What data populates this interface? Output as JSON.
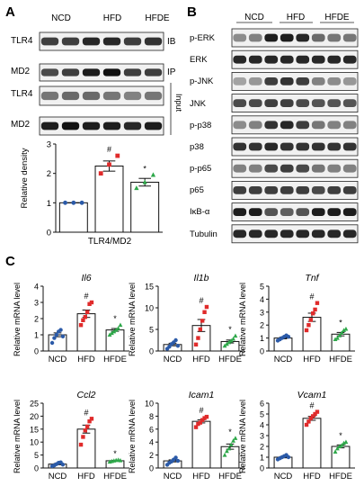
{
  "panel_a": {
    "letter": "A",
    "groups": [
      "NCD",
      "HFD",
      "HFDE"
    ],
    "blots": [
      "TLR4",
      "MD2",
      "TLR4",
      "MD2"
    ],
    "ib_label": "IB",
    "ip_label": "IP",
    "input_label": "Input",
    "xlabel": "TLR4/MD2",
    "ylabel": "Relative density",
    "markers": [
      "#",
      "*"
    ]
  },
  "panel_b": {
    "letter": "B",
    "groups": [
      "NCD",
      "HFD",
      "HFDE"
    ],
    "blots": [
      "p-ERK",
      "ERK",
      "p-JNK",
      "JNK",
      "p-p38",
      "p38",
      "p-p65",
      "p65",
      "IκB-α",
      "Tubulin"
    ]
  },
  "panel_c": {
    "letter": "C",
    "ylabel": "Relative mRNA level",
    "markers": [
      "#",
      "*"
    ]
  },
  "colors": {
    "ncd": "#2b5aa8",
    "hfd": "#e02b2b",
    "hfde": "#2ea84a"
  },
  "chart_data": [
    {
      "type": "bar",
      "categories": [
        "TLR4/MD2"
      ],
      "ylabel": "Relative density",
      "ylim": [
        0,
        3
      ],
      "yticks": [
        "0",
        "1",
        "2",
        "3"
      ],
      "series": [
        {
          "values": [
            1.0
          ],
          "points": [
            1.0,
            1.0,
            1.0
          ]
        },
        {
          "values": [
            2.25
          ],
          "points": [
            2.0,
            2.3,
            2.6
          ]
        },
        {
          "values": [
            1.7
          ],
          "points": [
            1.5,
            1.7,
            1.95
          ]
        }
      ]
    },
    {
      "type": "bar",
      "title": "Il6",
      "categories": [
        "NCD",
        "HFD",
        "HFDE"
      ],
      "ylabel": "Relative mRNA level",
      "ylim": [
        0,
        4
      ],
      "yticks": [
        "0",
        "1",
        "2",
        "3",
        "4"
      ],
      "values": [
        1.0,
        2.3,
        1.3
      ],
      "points": [
        [
          0.5,
          0.8,
          1.0,
          1.2,
          1.3,
          0.9
        ],
        [
          1.6,
          1.9,
          2.1,
          2.4,
          2.9,
          3.0
        ],
        [
          1.0,
          1.1,
          1.2,
          1.3,
          1.4,
          1.6
        ]
      ]
    },
    {
      "type": "bar",
      "title": "Il1b",
      "categories": [
        "NCD",
        "HFD",
        "HFDE"
      ],
      "ylabel": "Relative mRNA level",
      "ylim": [
        0,
        15
      ],
      "yticks": [
        "0",
        "5",
        "10",
        "15"
      ],
      "values": [
        1.5,
        5.9,
        2.2
      ],
      "points": [
        [
          0.5,
          1.0,
          1.6,
          2.0,
          2.5,
          1.2
        ],
        [
          1.5,
          3.0,
          5.0,
          7.0,
          9.0,
          10.2
        ],
        [
          1.2,
          1.6,
          2.0,
          2.4,
          2.8,
          3.5
        ]
      ]
    },
    {
      "type": "bar",
      "title": "Tnf",
      "categories": [
        "NCD",
        "HFD",
        "HFDE"
      ],
      "ylabel": "Relative mRNA level",
      "ylim": [
        0,
        5
      ],
      "yticks": [
        "0",
        "1",
        "2",
        "3",
        "4",
        "5"
      ],
      "values": [
        1.0,
        2.6,
        1.3
      ],
      "points": [
        [
          0.8,
          0.9,
          1.0,
          1.1,
          1.2,
          1.1
        ],
        [
          1.6,
          2.0,
          2.4,
          2.9,
          3.2,
          3.7
        ],
        [
          0.9,
          1.0,
          1.2,
          1.4,
          1.6,
          1.7
        ]
      ]
    },
    {
      "type": "bar",
      "title": "Ccl2",
      "categories": [
        "NCD",
        "HFD",
        "HFDE"
      ],
      "ylabel": "Relative mRNA level",
      "ylim": [
        0,
        25
      ],
      "yticks": [
        "0",
        "5",
        "10",
        "15",
        "20",
        "25"
      ],
      "values": [
        1.5,
        15.0,
        2.8
      ],
      "points": [
        [
          0.7,
          1.0,
          1.5,
          2.0,
          2.2,
          1.3
        ],
        [
          9.0,
          12.0,
          14.5,
          16.0,
          18.0,
          19.0
        ],
        [
          2.4,
          2.6,
          2.8,
          3.0,
          3.1,
          2.9
        ]
      ]
    },
    {
      "type": "bar",
      "title": "Icam1",
      "categories": [
        "NCD",
        "HFD",
        "HFDE"
      ],
      "ylabel": "Relative mRNA level",
      "ylim": [
        0,
        10
      ],
      "yticks": [
        "0",
        "2",
        "4",
        "6",
        "8",
        "10"
      ],
      "values": [
        1.1,
        7.2,
        3.3
      ],
      "points": [
        [
          0.5,
          0.8,
          1.0,
          1.3,
          1.6,
          1.1
        ],
        [
          6.3,
          6.8,
          7.0,
          7.4,
          7.7,
          7.9
        ],
        [
          2.0,
          2.6,
          3.0,
          3.6,
          4.2,
          4.6
        ]
      ]
    },
    {
      "type": "bar",
      "title": "Vcam1",
      "categories": [
        "NCD",
        "HFD",
        "HFDE"
      ],
      "ylabel": "Relative mRNA level",
      "ylim": [
        0,
        6
      ],
      "yticks": [
        "0",
        "1",
        "2",
        "3",
        "4",
        "5",
        "6"
      ],
      "values": [
        1.0,
        4.6,
        2.0
      ],
      "points": [
        [
          0.8,
          0.9,
          1.0,
          1.1,
          1.2,
          1.0
        ],
        [
          4.0,
          4.3,
          4.6,
          4.8,
          5.0,
          5.2
        ],
        [
          1.5,
          1.8,
          2.0,
          2.1,
          2.3,
          2.4
        ]
      ]
    }
  ]
}
